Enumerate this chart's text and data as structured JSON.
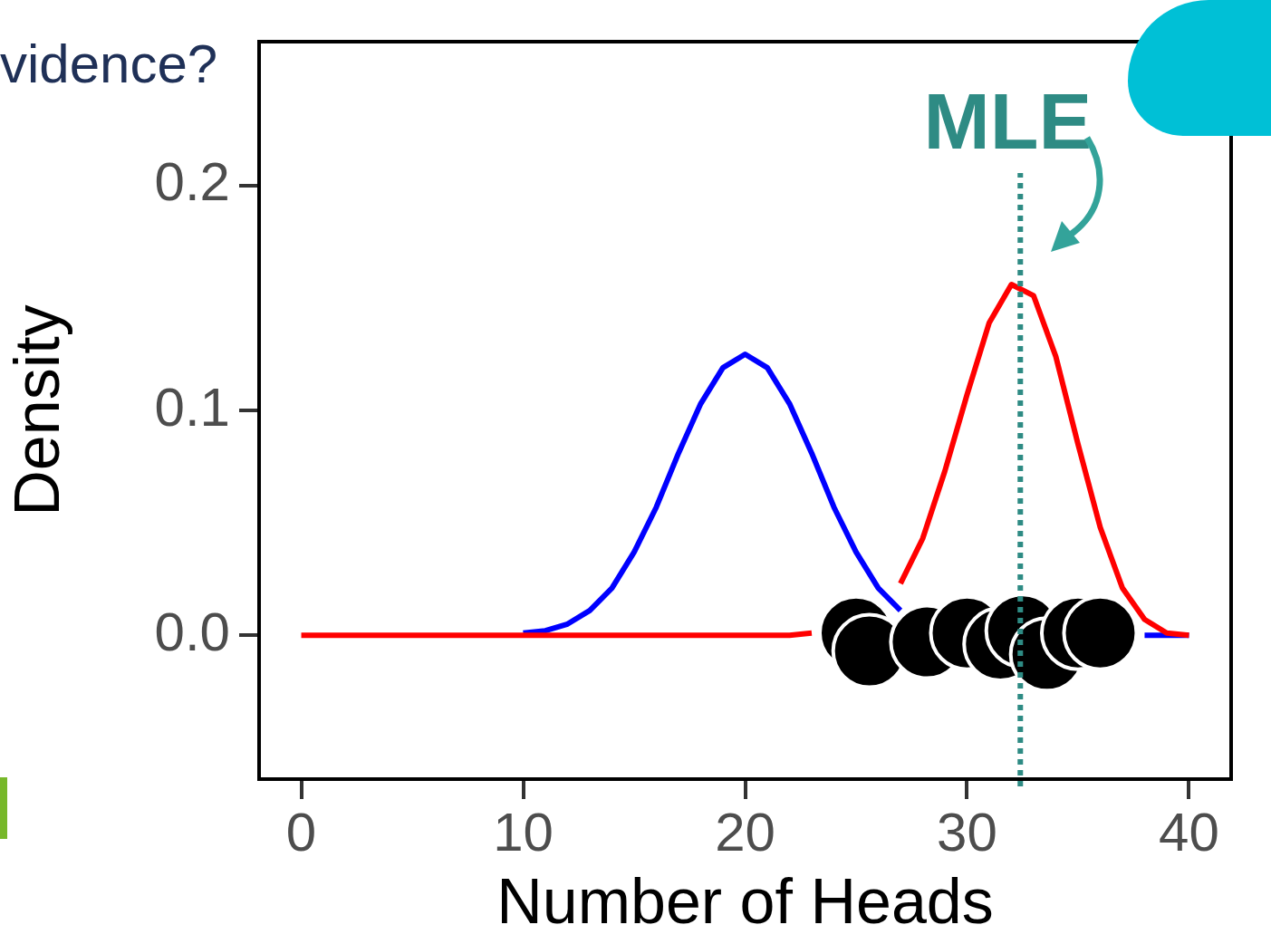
{
  "chart_data": {
    "type": "line",
    "xlabel": "Number of Heads",
    "ylabel": "Density",
    "annotations": [
      "vidence?"
    ],
    "x": [
      0,
      1,
      2,
      3,
      4,
      5,
      6,
      7,
      8,
      9,
      10,
      11,
      12,
      13,
      14,
      15,
      16,
      17,
      18,
      19,
      20,
      21,
      22,
      23,
      24,
      25,
      26,
      27,
      28,
      29,
      30,
      31,
      32,
      33,
      34,
      35,
      36,
      37,
      38,
      39,
      40
    ],
    "series": [
      {
        "color": "#0000ff",
        "values": [
          null,
          null,
          null,
          null,
          null,
          null,
          null,
          null,
          null,
          null,
          0.001,
          0.002,
          0.005,
          0.011,
          0.021,
          0.037,
          0.057,
          0.081,
          0.103,
          0.119,
          0.125,
          0.119,
          0.103,
          0.081,
          0.057,
          0.037,
          0.021,
          0.011,
          null,
          null,
          null,
          null,
          null,
          null,
          null,
          null,
          null,
          null,
          0,
          0,
          0
        ]
      },
      {
        "color": "#ff0000",
        "values": [
          0,
          0,
          0,
          0,
          0,
          0,
          0,
          0,
          0,
          0,
          0,
          0,
          0,
          0,
          0,
          0,
          0,
          0,
          0,
          0,
          0,
          0,
          0,
          0.001,
          null,
          null,
          null,
          0.023,
          0.043,
          0.073,
          0.107,
          0.139,
          0.156,
          0.151,
          0.124,
          0.085,
          0.048,
          0.021,
          0.007,
          0.001,
          0
        ]
      },
      {
        "type": "scatter",
        "color": "#000000",
        "marker": "circle",
        "x": [
          25.0,
          25.6,
          28.2,
          30.0,
          31.5,
          32.5,
          33.6,
          35.0,
          36.0
        ],
        "values": [
          0.001,
          -0.007,
          -0.003,
          0.001,
          -0.004,
          0.002,
          -0.0085,
          0.001,
          0.001
        ]
      }
    ],
    "xlim": [
      -1.9,
      41.9
    ],
    "xticks": [
      0,
      10,
      20,
      30,
      40
    ],
    "ylim": [
      -0.064,
      0.264
    ],
    "yticks": [
      {
        "value": 0,
        "label": "0.0"
      },
      {
        "value": 0.1,
        "label": "0.1"
      },
      {
        "value": 0.2,
        "label": "0.2"
      }
    ],
    "ref_lines": [
      {
        "axis": "x",
        "value": 32.4,
        "label": "MLE",
        "color": "#2e8b84",
        "line_style": "dotted"
      }
    ],
    "grid": false,
    "legend": false,
    "line_style": "solid"
  }
}
